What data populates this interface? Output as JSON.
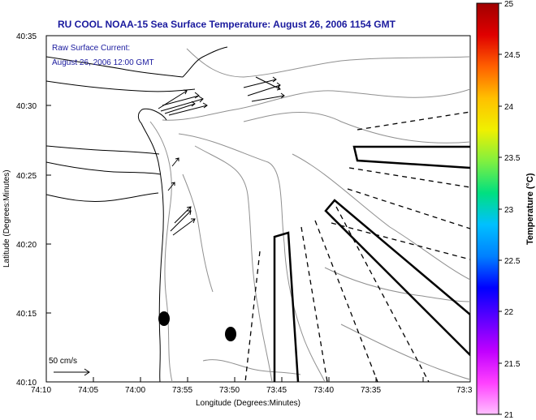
{
  "title": "RU COOL  NOAA-15  Sea Surface Temperature:  August 26, 2006 1154 GMT",
  "note": {
    "line1": "Raw Surface Current:",
    "line2": "August 26, 2006 12:00 GMT"
  },
  "scale": {
    "label": "50 cm/s"
  },
  "x_axis": {
    "label": "Longitude (Degrees:Minutes)",
    "ticks": [
      "74:10",
      "74:05",
      "74:00",
      "73:55",
      "73:50",
      "73:45",
      "73:40",
      "73:35",
      "73:3"
    ]
  },
  "y_axis": {
    "label": "Latitude (Degrees:Minutes)",
    "ticks": [
      "40:35",
      "40:30",
      "40:25",
      "40:20",
      "40:15",
      "40:10"
    ]
  },
  "colorbar": {
    "label": "Temperature (°C)",
    "ticks": [
      "25",
      "24.5",
      "24",
      "23.5",
      "23",
      "22.5",
      "22",
      "21.5",
      "21"
    ],
    "gradient": [
      "#a00000",
      "#e00000",
      "#ff6000",
      "#ffc000",
      "#f0f000",
      "#80f040",
      "#00e080",
      "#00c0ff",
      "#0080ff",
      "#0000ff",
      "#6000ff",
      "#c000ff",
      "#ff40ff",
      "#ffc0ff"
    ]
  },
  "colors": {
    "title": "#1a1a9e",
    "background": "#ffffff",
    "coast": "#000000",
    "bathymetry": "#909090"
  }
}
